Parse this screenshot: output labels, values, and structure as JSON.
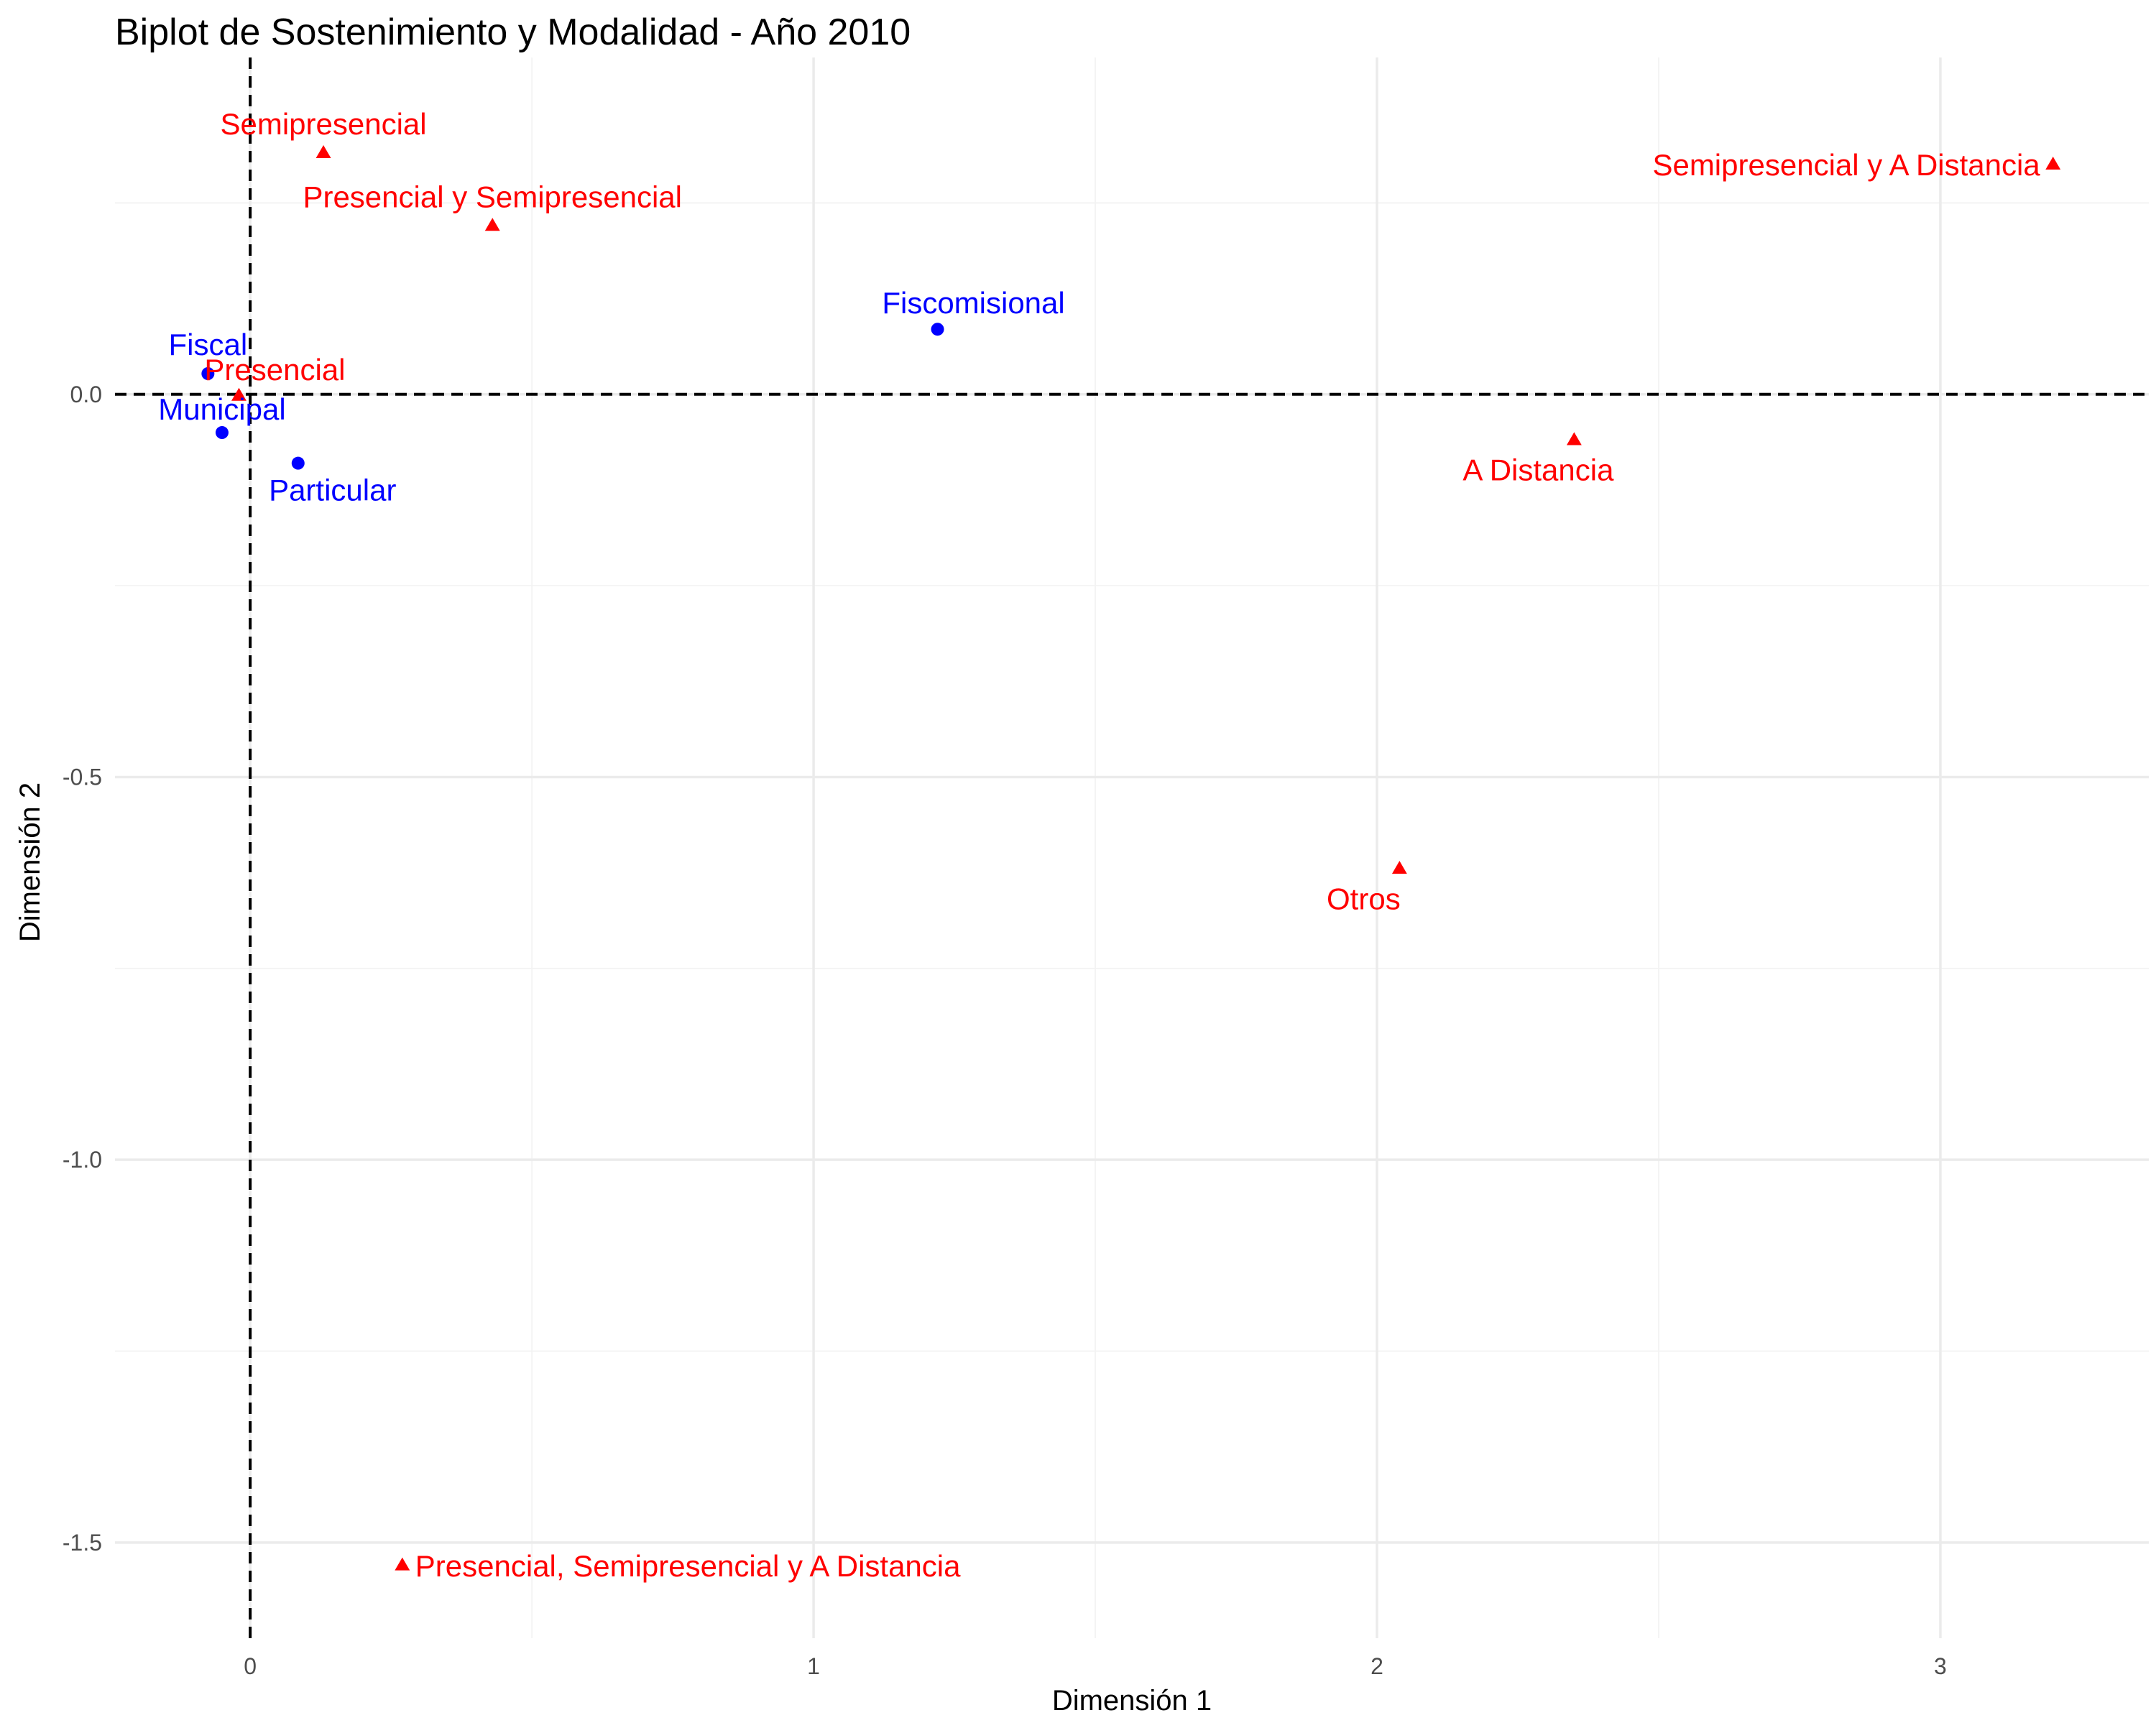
{
  "chart_data": {
    "type": "scatter",
    "title": "Biplot de Sostenimiento y Modalidad - Año 2010",
    "xlabel": "Dimensión 1",
    "ylabel": "Dimensión 2",
    "xlim": [
      -0.24,
      3.37
    ],
    "ylim": [
      -1.625,
      0.44
    ],
    "x_ticks": [
      {
        "value": 0,
        "label": "0"
      },
      {
        "value": 1,
        "label": "1"
      },
      {
        "value": 2,
        "label": "2"
      },
      {
        "value": 3,
        "label": "3"
      }
    ],
    "y_ticks": [
      {
        "value": 0.0,
        "label": "0.0"
      },
      {
        "value": -0.5,
        "label": "-0.5"
      },
      {
        "value": -1.0,
        "label": "-1.0"
      },
      {
        "value": -1.5,
        "label": "-1.5"
      }
    ],
    "grid": true,
    "reference_lines": {
      "x": 0,
      "y": 0,
      "style": "dashed"
    },
    "legend": "none",
    "colors": {
      "sostenimiento": "#0000FF",
      "modalidad": "#FF0000"
    },
    "series": [
      {
        "group": "sostenimiento",
        "marker": "circle",
        "color": "#0000FF",
        "points": [
          {
            "label": "Fiscal",
            "x": -0.075,
            "y": 0.027,
            "label_pos": "above"
          },
          {
            "label": "Municipal",
            "x": -0.05,
            "y": -0.05,
            "label_pos": "above-left"
          },
          {
            "label": "Particular",
            "x": 0.085,
            "y": -0.09,
            "label_pos": "below-right"
          },
          {
            "label": "Fiscomisional",
            "x": 1.22,
            "y": 0.085,
            "label_pos": "above-right"
          }
        ]
      },
      {
        "group": "modalidad",
        "marker": "triangle",
        "color": "#FF0000",
        "points": [
          {
            "label": "Presencial",
            "x": -0.02,
            "y": -0.002,
            "label_pos": "above-right"
          },
          {
            "label": "Semipresencial",
            "x": 0.13,
            "y": 0.315,
            "label_pos": "above"
          },
          {
            "label": "Presencial y Semipresencial",
            "x": 0.43,
            "y": 0.22,
            "label_pos": "above"
          },
          {
            "label": "Semipresencial y A Distancia",
            "x": 3.2,
            "y": 0.3,
            "label_pos": "left"
          },
          {
            "label": "A Distancia",
            "x": 2.35,
            "y": -0.06,
            "label_pos": "below-left"
          },
          {
            "label": "Otros",
            "x": 2.04,
            "y": -0.62,
            "label_pos": "below-left"
          },
          {
            "label": "Presencial, Semipresencial y A Distancia",
            "x": 0.27,
            "y": -1.53,
            "label_pos": "right"
          }
        ]
      }
    ]
  }
}
